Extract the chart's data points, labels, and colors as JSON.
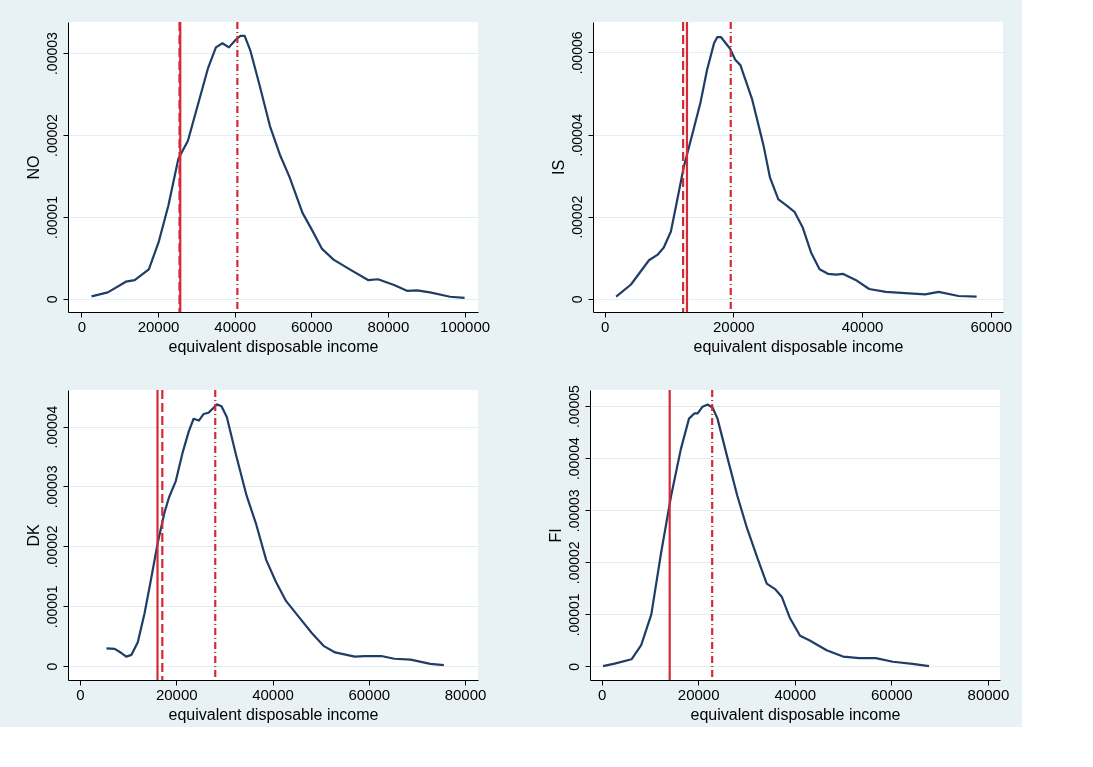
{
  "chart_data": [
    {
      "type": "line",
      "ylabel": "NO",
      "xlabel": "equivalent disposable income",
      "xlim": [
        -3500,
        103500
      ],
      "ylim": [
        -1.6e-06,
        3.38e-05
      ],
      "xticks": [
        0,
        20000,
        40000,
        60000,
        80000,
        100000
      ],
      "yticks": [
        0,
        {
          "value": 1e-05,
          "label": ".00001"
        },
        {
          "value": 2e-05,
          "label": ".00002"
        },
        {
          "value": 3e-05,
          "label": ".00003"
        }
      ],
      "grid": "y",
      "line_style": "solid",
      "x": [
        2650,
        6900,
        11600,
        13900,
        17600,
        20200,
        22700,
        25300,
        27800,
        30400,
        33000,
        35100,
        36800,
        38500,
        40200,
        41500,
        42600,
        44100,
        46600,
        49200,
        51800,
        54300,
        57700,
        60300,
        62800,
        65800,
        69700,
        74800,
        77400,
        81600,
        85100,
        87600,
        91000,
        96200,
        100000
      ],
      "series": [
        {
          "color": "#1f3d66",
          "values": [
            3.1e-07,
            7.9e-07,
            2.1e-06,
            2.3e-06,
            3.6e-06,
            7e-06,
            1.14e-05,
            1.71e-05,
            1.93e-05,
            2.37e-05,
            2.81e-05,
            3.07e-05,
            3.12e-05,
            3.07e-05,
            3.16e-05,
            3.21e-05,
            3.21e-05,
            3.03e-05,
            2.59e-05,
            2.11e-05,
            1.76e-05,
            1.49e-05,
            1.05e-05,
            8.3e-06,
            6.1e-06,
            4.8e-06,
            3.7e-06,
            2.3e-06,
            2.4e-06,
            1.7e-06,
            9.7e-07,
            1.05e-06,
            7.9e-07,
            2.6e-07,
            1.3e-07
          ]
        }
      ],
      "ref_lines": [
        {
          "axis": "x",
          "value": 25600,
          "color": "#d42a35",
          "line_style": "dashed"
        },
        {
          "axis": "x",
          "value": 25800,
          "color": "#d42a35",
          "line_style": "solid"
        },
        {
          "axis": "x",
          "value": 40700,
          "color": "#d42a35",
          "line_style": "dotted"
        }
      ]
    },
    {
      "type": "line",
      "ylabel": "IS",
      "xlabel": "equivalent disposable income",
      "xlim": [
        -1800,
        61900
      ],
      "ylim": [
        -3.2e-06,
        6.74e-05
      ],
      "xticks": [
        0,
        20000,
        40000,
        60000
      ],
      "yticks": [
        0,
        {
          "value": 2e-05,
          "label": ".00002"
        },
        {
          "value": 4e-05,
          "label": ".00004"
        },
        {
          "value": 6e-05,
          "label": ".00006"
        }
      ],
      "grid": "y",
      "line_style": "solid",
      "x": [
        1800,
        4100,
        6900,
        8200,
        9200,
        10300,
        11300,
        12300,
        13600,
        14900,
        15900,
        17000,
        17500,
        18100,
        19500,
        20300,
        21100,
        22900,
        24700,
        25700,
        27000,
        28300,
        29500,
        30800,
        32100,
        33400,
        34700,
        36000,
        37000,
        39000,
        41100,
        43700,
        46700,
        49800,
        51900,
        55000,
        57800
      ],
      "series": [
        {
          "color": "#1f3d66",
          "values": [
            5.2e-07,
            3.5e-06,
            9.4e-06,
            1.07e-05,
            1.25e-05,
            1.64e-05,
            2.42e-05,
            3.21e-05,
            3.99e-05,
            4.78e-05,
            5.56e-05,
            6.22e-05,
            6.37e-05,
            6.37e-05,
            6.09e-05,
            5.82e-05,
            5.69e-05,
            4.87e-05,
            3.73e-05,
            2.95e-05,
            2.42e-05,
            2.27e-05,
            2.12e-05,
            1.73e-05,
            1.12e-05,
            7.2e-06,
            6.1e-06,
            5.9e-06,
            6.1e-06,
            4.6e-06,
            2.4e-06,
            1.7e-06,
            1.4e-06,
            1.1e-06,
            1.7e-06,
            7e-07,
            5.2e-07
          ]
        }
      ],
      "ref_lines": [
        {
          "axis": "x",
          "value": 12200,
          "color": "#d42a35",
          "line_style": "dashed"
        },
        {
          "axis": "x",
          "value": 12800,
          "color": "#d42a35",
          "line_style": "solid"
        },
        {
          "axis": "x",
          "value": 19600,
          "color": "#d42a35",
          "line_style": "dotted"
        }
      ]
    },
    {
      "type": "line",
      "ylabel": "DK",
      "xlabel": "equivalent disposable income",
      "xlim": [
        -2500,
        82700
      ],
      "ylim": [
        -2.3e-06,
        4.61e-05
      ],
      "xticks": [
        0,
        20000,
        40000,
        60000,
        80000
      ],
      "yticks": [
        0,
        {
          "value": 1e-05,
          "label": ".00001"
        },
        {
          "value": 2e-05,
          "label": ".00002"
        },
        {
          "value": 3e-05,
          "label": ".00003"
        },
        {
          "value": 4e-05,
          "label": ".00004"
        }
      ],
      "grid": "y",
      "line_style": "solid",
      "x": [
        5500,
        7200,
        8600,
        9600,
        10700,
        12000,
        13400,
        14800,
        16100,
        17500,
        18500,
        19900,
        21300,
        22600,
        23600,
        24700,
        25700,
        26700,
        27700,
        28400,
        29400,
        30500,
        32500,
        34600,
        36600,
        38700,
        40700,
        42800,
        45500,
        48200,
        50600,
        53000,
        57100,
        59200,
        62600,
        65300,
        68700,
        72800,
        75600
      ],
      "series": [
        {
          "color": "#1f3d66",
          "values": [
            2.99e-06,
            2.9e-06,
            2.2e-06,
            1.6e-06,
            1.9e-06,
            4e-06,
            8.8e-06,
            1.47e-05,
            2.04e-05,
            2.55e-05,
            2.82e-05,
            3.09e-05,
            3.56e-05,
            3.92e-05,
            4.13e-05,
            4.1e-05,
            4.21e-05,
            4.23e-05,
            4.31e-05,
            4.37e-05,
            4.34e-05,
            4.16e-05,
            3.5e-05,
            2.85e-05,
            2.37e-05,
            1.77e-05,
            1.41e-05,
            1.09e-05,
            8.2e-06,
            5.5e-06,
            3.4e-06,
            2.3e-06,
            1.6e-06,
            1.7e-06,
            1.7e-06,
            1.25e-06,
            1.1e-06,
            4e-07,
            1.8e-07
          ]
        }
      ],
      "ref_lines": [
        {
          "axis": "x",
          "value": 16100,
          "color": "#d42a35",
          "line_style": "solid"
        },
        {
          "axis": "x",
          "value": 17100,
          "color": "#d42a35",
          "line_style": "dashed"
        },
        {
          "axis": "x",
          "value": 28100,
          "color": "#d42a35",
          "line_style": "dotted"
        }
      ]
    },
    {
      "type": "line",
      "ylabel": "FI",
      "xlabel": "equivalent disposable income",
      "xlim": [
        -2400,
        82500
      ],
      "ylim": [
        -2.6e-06,
        5.31e-05
      ],
      "xticks": [
        0,
        20000,
        40000,
        60000,
        80000
      ],
      "yticks": [
        0,
        {
          "value": 1e-05,
          "label": ".00001"
        },
        {
          "value": 2e-05,
          "label": ".00002"
        },
        {
          "value": 3e-05,
          "label": ".00003"
        },
        {
          "value": 4e-05,
          "label": ".00004"
        },
        {
          "value": 5e-05,
          "label": ".00005"
        }
      ],
      "grid": "y",
      "line_style": "solid",
      "x": [
        300,
        2700,
        6200,
        8200,
        10300,
        12300,
        14400,
        16400,
        18100,
        19200,
        19900,
        20900,
        22000,
        23000,
        24000,
        26000,
        28100,
        30100,
        32200,
        34200,
        36000,
        37300,
        39000,
        41100,
        43100,
        46600,
        50000,
        53400,
        56800,
        60300,
        64400,
        67800
      ],
      "series": [
        {
          "color": "#1f3d66",
          "values": [
            7e-08,
            5.5e-07,
            1.38e-06,
            4.1e-06,
            1e-05,
            2.17e-05,
            3.28e-05,
            4.17e-05,
            4.76e-05,
            4.86e-05,
            4.86e-05,
            4.99e-05,
            5.03e-05,
            4.97e-05,
            4.76e-05,
            4.03e-05,
            3.28e-05,
            2.66e-05,
            2.1e-05,
            1.59e-05,
            1.48e-05,
            1.34e-05,
            9.3e-06,
            5.9e-06,
            5e-06,
            3.1e-06,
            1.9e-06,
            1.6e-06,
            1.6e-06,
            9e-07,
            4.8e-07,
            7e-08
          ]
        }
      ],
      "ref_lines": [
        {
          "axis": "x",
          "value": 14100,
          "color": "#d42a35",
          "line_style": "solid"
        },
        {
          "axis": "x",
          "value": 22900,
          "color": "#d42a35",
          "line_style": "dotted"
        }
      ]
    }
  ]
}
